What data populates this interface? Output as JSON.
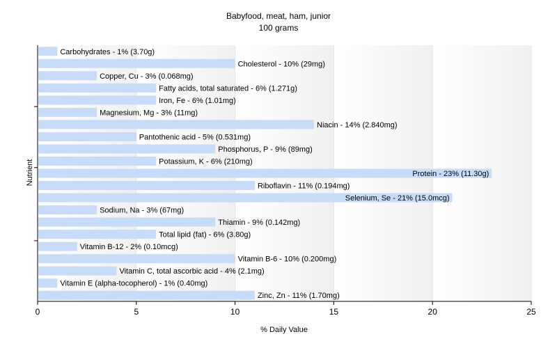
{
  "chart_data": {
    "type": "bar",
    "orientation": "horizontal",
    "title": "Babyfood, meat, ham, junior",
    "subtitle": "100 grams",
    "xlabel": "% Daily Value",
    "ylabel": "Nutrient",
    "xlim": [
      0,
      25
    ],
    "xticks": [
      "0",
      "5",
      "10",
      "15",
      "20",
      "25"
    ],
    "grid": true,
    "bar_color": "#c6dcf8",
    "categories": [
      "Carbohydrates",
      "Cholesterol",
      "Copper, Cu",
      "Fatty acids, total saturated",
      "Iron, Fe",
      "Magnesium, Mg",
      "Niacin",
      "Pantothenic acid",
      "Phosphorus, P",
      "Potassium, K",
      "Protein",
      "Riboflavin",
      "Selenium, Se",
      "Sodium, Na",
      "Thiamin",
      "Total lipid (fat)",
      "Vitamin B-12",
      "Vitamin B-6",
      "Vitamin C, total ascorbic acid",
      "Vitamin E (alpha-tocopherol)",
      "Zinc, Zn"
    ],
    "values": [
      1,
      10,
      3,
      6,
      6,
      3,
      14,
      5,
      9,
      6,
      23,
      11,
      21,
      3,
      9,
      6,
      2,
      10,
      4,
      1,
      11
    ],
    "labels": [
      "Carbohydrates - 1% (3.70g)",
      "Cholesterol - 10% (29mg)",
      "Copper, Cu - 3% (0.068mg)",
      "Fatty acids, total saturated - 6% (1.271g)",
      "Iron, Fe - 6% (1.01mg)",
      "Magnesium, Mg - 3% (11mg)",
      "Niacin - 14% (2.840mg)",
      "Pantothenic acid - 5% (0.531mg)",
      "Phosphorus, P - 9% (89mg)",
      "Potassium, K - 6% (210mg)",
      "Protein - 23% (11.30g)",
      "Riboflavin - 11% (0.194mg)",
      "Selenium, Se - 21% (15.0mcg)",
      "Sodium, Na - 3% (67mg)",
      "Thiamin - 9% (0.142mg)",
      "Total lipid (fat) - 6% (3.80g)",
      "Vitamin B-12 - 2% (0.10mcg)",
      "Vitamin B-6 - 10% (0.200mg)",
      "Vitamin C, total ascorbic acid - 4% (2.1mg)",
      "Vitamin E (alpha-tocopherol) - 1% (0.40mg)",
      "Zinc, Zn - 11% (1.70mg)"
    ]
  }
}
